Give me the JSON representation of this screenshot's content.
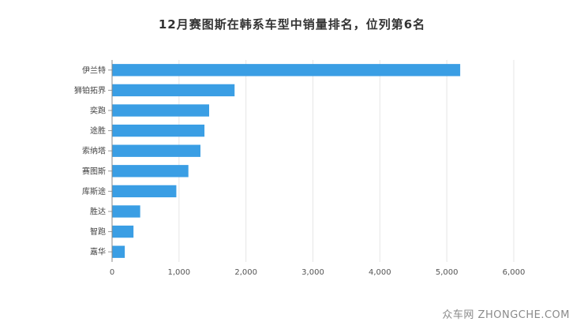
{
  "chart_data": {
    "type": "bar",
    "orientation": "horizontal",
    "title": "12月赛图斯在韩系车型中销量排名，位列第6名",
    "categories": [
      "伊兰特",
      "狮铂拓界",
      "奕跑",
      "途胜",
      "索纳塔",
      "赛图斯",
      "库斯途",
      "胜达",
      "智跑",
      "嘉华"
    ],
    "values": [
      5200,
      1830,
      1450,
      1380,
      1320,
      1140,
      960,
      420,
      320,
      190
    ],
    "xlim": [
      0,
      6000
    ],
    "xticks": [
      0,
      1000,
      2000,
      3000,
      4000,
      5000,
      6000
    ],
    "xtick_labels": [
      "0",
      "1,000",
      "2,000",
      "3,000",
      "4,000",
      "5,000",
      "6,000"
    ],
    "grid": true,
    "bar_color": "#3a9ee4"
  },
  "watermark": "众车网 ZHONGCHE.COM"
}
